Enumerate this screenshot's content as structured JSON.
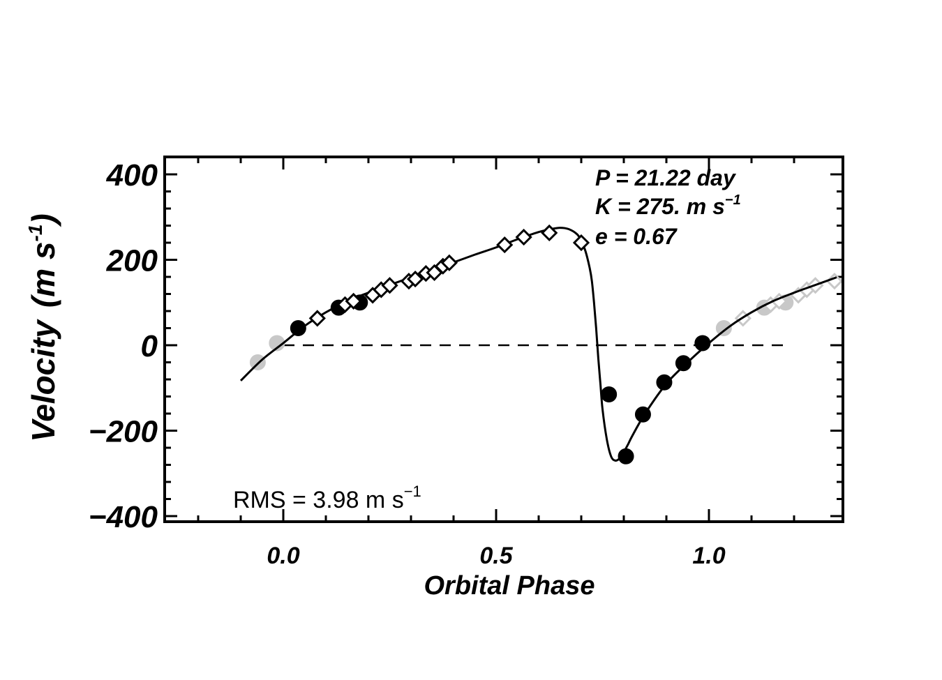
{
  "chart_data": {
    "type": "scatter",
    "xlabel": "Orbital Phase",
    "ylabel": "Velocity",
    "ylabel_unit": "(m s",
    "ylabel_exp": "-1",
    "xlim": [
      -0.28,
      1.3
    ],
    "ylim": [
      -415,
      440
    ],
    "x_ticks": [
      0.0,
      0.5,
      1.0
    ],
    "x_tick_labels": [
      "0.0",
      "0.5",
      "1.0"
    ],
    "y_ticks": [
      400,
      200,
      0,
      -200,
      -400
    ],
    "y_tick_labels": [
      "400",
      "200",
      "0",
      "−200",
      "−400"
    ],
    "grid": false,
    "zero_line": true,
    "annotations": {
      "period": "P = 21.22 day",
      "amplitude": "K = 275. m s",
      "amplitude_exp": "−1",
      "eccentricity": "e = 0.67",
      "rms": "RMS = 3.98 m s",
      "rms_exp": "−1"
    },
    "colors": {
      "primary": "#000000",
      "repeat": "#c8c8c8"
    },
    "model_curve": {
      "x": [
        -0.1,
        -0.05,
        0.0,
        0.05,
        0.1,
        0.15,
        0.2,
        0.25,
        0.3,
        0.35,
        0.4,
        0.45,
        0.5,
        0.55,
        0.6,
        0.63,
        0.65,
        0.67,
        0.69,
        0.7,
        0.71,
        0.72,
        0.725,
        0.73,
        0.735,
        0.74,
        0.745,
        0.75,
        0.76,
        0.77,
        0.78,
        0.79,
        0.8,
        0.81,
        0.82,
        0.85,
        0.9,
        0.95,
        1.0,
        1.05,
        1.1,
        1.15,
        1.2,
        1.25,
        1.3
      ],
      "y": [
        -83,
        -34,
        5,
        45,
        77,
        103,
        123,
        141,
        159,
        176,
        194,
        212,
        229,
        248,
        265,
        272,
        275,
        272,
        260,
        245,
        220,
        180,
        150,
        100,
        40,
        -30,
        -90,
        -150,
        -220,
        -260,
        -270,
        -265,
        -250,
        -232,
        -212,
        -160,
        -90,
        -40,
        5,
        45,
        77,
        103,
        123,
        141,
        159
      ]
    },
    "series": [
      {
        "marker": "filled-circle",
        "points": [
          [
            0.035,
            40
          ],
          [
            0.13,
            88
          ],
          [
            0.18,
            100
          ],
          [
            0.765,
            -115
          ],
          [
            0.805,
            -260
          ],
          [
            0.845,
            -162
          ],
          [
            0.895,
            -87
          ],
          [
            0.94,
            -42
          ],
          [
            0.985,
            5
          ]
        ]
      },
      {
        "marker": "open-diamond",
        "points": [
          [
            0.08,
            63
          ],
          [
            0.145,
            95
          ],
          [
            0.165,
            103
          ],
          [
            0.21,
            117
          ],
          [
            0.23,
            130
          ],
          [
            0.25,
            140
          ],
          [
            0.295,
            150
          ],
          [
            0.31,
            155
          ],
          [
            0.335,
            168
          ],
          [
            0.355,
            170
          ],
          [
            0.375,
            185
          ],
          [
            0.39,
            193
          ],
          [
            0.52,
            235
          ],
          [
            0.565,
            253
          ],
          [
            0.625,
            263
          ],
          [
            0.7,
            240
          ]
        ]
      },
      {
        "marker": "filled-circle",
        "repeat": true,
        "points": [
          [
            -0.06,
            -40
          ],
          [
            -0.015,
            5
          ],
          [
            1.035,
            40
          ],
          [
            1.13,
            88
          ],
          [
            1.18,
            100
          ]
        ]
      },
      {
        "marker": "open-diamond",
        "repeat": true,
        "points": [
          [
            1.08,
            63
          ],
          [
            1.145,
            95
          ],
          [
            1.165,
            103
          ],
          [
            1.21,
            117
          ],
          [
            1.23,
            130
          ],
          [
            1.25,
            140
          ],
          [
            1.295,
            150
          ]
        ]
      }
    ]
  }
}
